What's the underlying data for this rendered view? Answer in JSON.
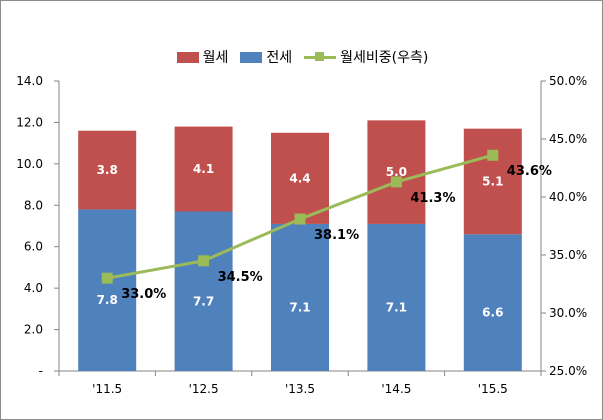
{
  "chart_data": {
    "type": "bar",
    "stacked": true,
    "categories": [
      "'11.5",
      "'12.5",
      "'13.5",
      "'14.5",
      "'15.5"
    ],
    "series": [
      {
        "name": "전세",
        "values": [
          7.8,
          7.7,
          7.1,
          7.1,
          6.6
        ],
        "color": "#4f81bd",
        "axis": "left",
        "labels": [
          "7.8",
          "7.7",
          "7.1",
          "7.1",
          "6.6"
        ]
      },
      {
        "name": "월세",
        "values": [
          3.8,
          4.1,
          4.4,
          5.0,
          5.1
        ],
        "color": "#c0504d",
        "axis": "left",
        "labels": [
          "3.8",
          "4.1",
          "4.4",
          "5.0",
          "5.1"
        ]
      },
      {
        "name": "월세비중(우측)",
        "type": "line",
        "values": [
          33.0,
          34.5,
          38.1,
          41.3,
          43.6
        ],
        "color": "#9bbb59",
        "axis": "right",
        "labels": [
          "33.0%",
          "34.5%",
          "38.1%",
          "41.3%",
          "43.6%"
        ]
      }
    ],
    "legend_order": [
      "월세",
      "전세",
      "월세비중(우측)"
    ],
    "legend_position": "top",
    "y_left": {
      "ylim": [
        0,
        14
      ],
      "ticks": [
        "-",
        "2.0",
        "4.0",
        "6.0",
        "8.0",
        "10.0",
        "12.0",
        "14.0"
      ]
    },
    "y_right": {
      "ylim": [
        25,
        50
      ],
      "ticks": [
        "25.0%",
        "30.0%",
        "35.0%",
        "40.0%",
        "45.0%",
        "50.0%"
      ]
    },
    "grid": false
  }
}
